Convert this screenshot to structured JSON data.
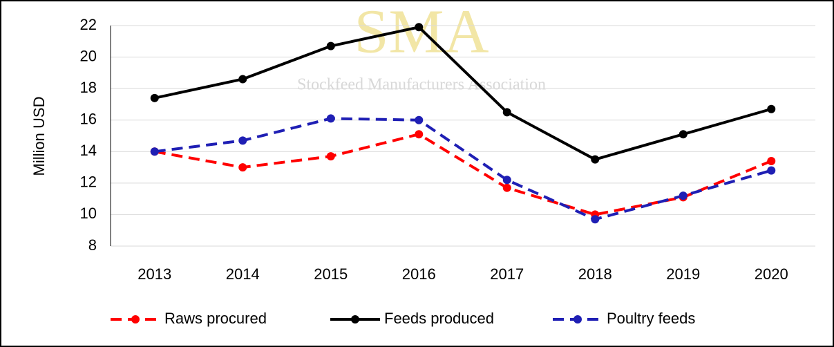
{
  "chart_data": {
    "type": "line",
    "ylabel": "Million  USD",
    "categories": [
      "2013",
      "2014",
      "2015",
      "2016",
      "2017",
      "2018",
      "2019",
      "2020"
    ],
    "series": [
      {
        "name": "Raws procured",
        "color": "#ff0000",
        "dashed": true,
        "values": [
          14.0,
          13.0,
          13.7,
          15.1,
          11.7,
          10.0,
          11.1,
          13.4
        ]
      },
      {
        "name": "Feeds produced",
        "color": "#000000",
        "dashed": false,
        "values": [
          17.4,
          18.6,
          20.7,
          21.9,
          16.5,
          13.5,
          15.1,
          16.7
        ]
      },
      {
        "name": "Poultry feeds",
        "color": "#1f1fb4",
        "dashed": true,
        "values": [
          14.0,
          14.7,
          16.1,
          16.0,
          12.2,
          9.7,
          11.2,
          12.8
        ]
      }
    ],
    "ylim": [
      8,
      22
    ],
    "yticks": [
      8,
      10,
      12,
      14,
      16,
      18,
      20,
      22
    ],
    "grid": true,
    "legend": "bottom",
    "watermark": {
      "logo": "SMA",
      "caption": "Stockfeed Manufacturers Association"
    }
  }
}
